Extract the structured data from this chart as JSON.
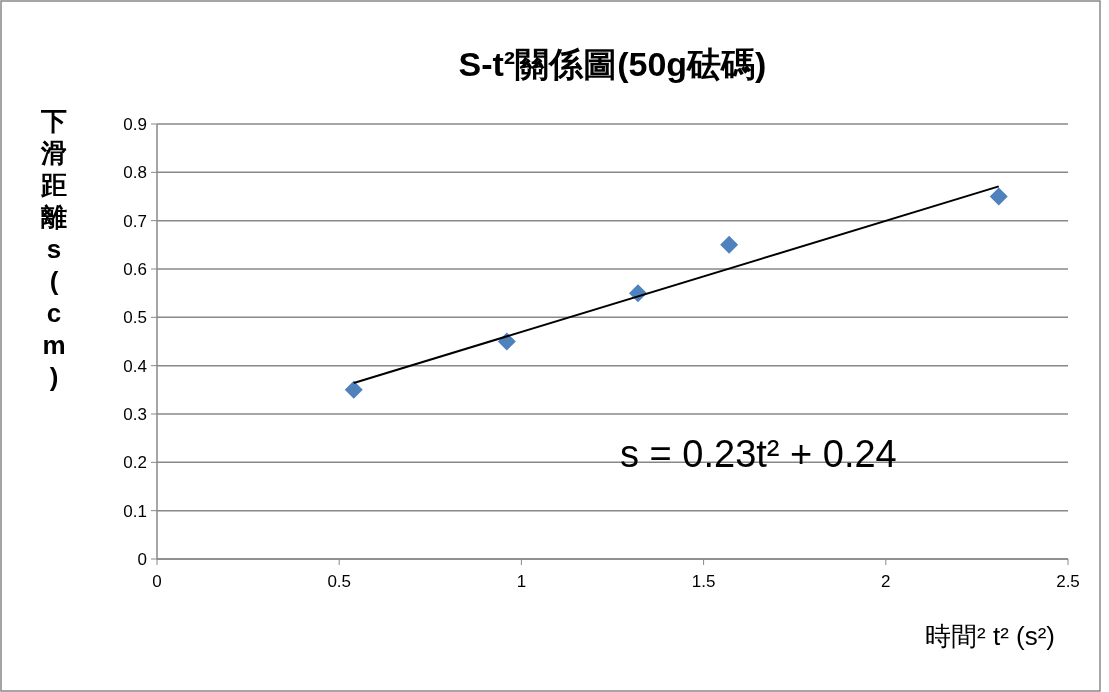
{
  "chart_data": {
    "type": "scatter",
    "title": "S-t²關係圖(50g砝碼)",
    "xlabel": "時間² t² (s²)",
    "ylabel": "下滑距離s(cm)",
    "annotations": [
      "s = 0.23t² + 0.24"
    ],
    "xlim": [
      0,
      2.5
    ],
    "xticks": [
      0,
      0.5,
      1,
      1.5,
      2,
      2.5
    ],
    "ylim": [
      0,
      0.9
    ],
    "yticks": [
      0,
      0.1,
      0.2,
      0.3,
      0.4,
      0.5,
      0.6,
      0.7,
      0.8,
      0.9
    ],
    "grid": "y",
    "marker": "diamond",
    "series": [
      {
        "color": "#4f81bd",
        "x": [
          0.54,
          0.96,
          1.32,
          1.57,
          2.31
        ],
        "values": [
          0.35,
          0.45,
          0.55,
          0.65,
          0.75
        ]
      },
      {
        "type": "line",
        "color": "#000000",
        "marker": "none",
        "line_style": "solid",
        "x": [
          0.54,
          2.31
        ],
        "values": [
          0.364,
          0.771
        ]
      }
    ]
  }
}
